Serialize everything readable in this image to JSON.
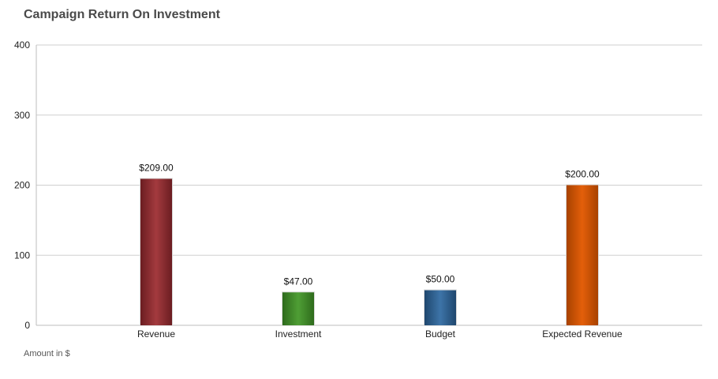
{
  "chart_data": {
    "type": "bar",
    "title": "Campaign Return On Investment",
    "categories": [
      "Revenue",
      "Investment",
      "Budget",
      "Expected Revenue"
    ],
    "values": [
      209,
      47,
      50,
      200
    ],
    "data_labels": [
      "$209.00",
      "$47.00",
      "$50.00",
      "$200.00"
    ],
    "colors": [
      "#8a2a2e",
      "#3f8a2a",
      "#2f5f8f",
      "#cf5300"
    ],
    "ylim": [
      0,
      400
    ],
    "yticks": [
      0,
      100,
      200,
      300,
      400
    ],
    "grid": true,
    "xlabel": "",
    "ylabel": "",
    "footnote": "Amount in $"
  }
}
